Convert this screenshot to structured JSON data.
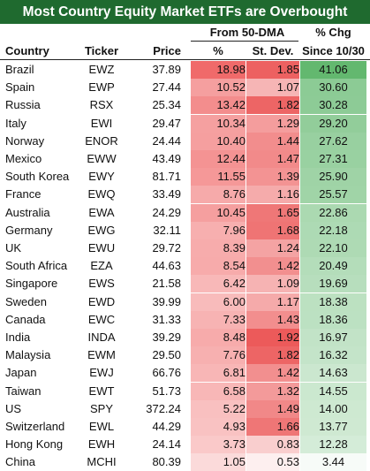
{
  "chart_data": {
    "type": "table",
    "title": "Most Country Equity Market ETFs are Overbought",
    "group_headers": {
      "from_dma": "From 50-DMA",
      "pct_chg": "% Chg"
    },
    "columns": [
      "Country",
      "Ticker",
      "Price",
      "%",
      "St. Dev.",
      "Since 10/30"
    ],
    "rows": [
      {
        "country": "Brazil",
        "ticker": "EWZ",
        "price": "37.89",
        "pct": "18.98",
        "std": "1.85",
        "chg": "41.06"
      },
      {
        "country": "Spain",
        "ticker": "EWP",
        "price": "27.44",
        "pct": "10.52",
        "std": "1.07",
        "chg": "30.60"
      },
      {
        "country": "Russia",
        "ticker": "RSX",
        "price": "25.34",
        "pct": "13.42",
        "std": "1.82",
        "chg": "30.28"
      },
      {
        "country": "Italy",
        "ticker": "EWI",
        "price": "29.47",
        "pct": "10.34",
        "std": "1.29",
        "chg": "29.20"
      },
      {
        "country": "Norway",
        "ticker": "ENOR",
        "price": "24.44",
        "pct": "10.40",
        "std": "1.44",
        "chg": "27.62"
      },
      {
        "country": "Mexico",
        "ticker": "EWW",
        "price": "43.49",
        "pct": "12.44",
        "std": "1.47",
        "chg": "27.31"
      },
      {
        "country": "South Korea",
        "ticker": "EWY",
        "price": "81.71",
        "pct": "11.55",
        "std": "1.39",
        "chg": "25.90"
      },
      {
        "country": "France",
        "ticker": "EWQ",
        "price": "33.49",
        "pct": "8.76",
        "std": "1.16",
        "chg": "25.57"
      },
      {
        "country": "Australia",
        "ticker": "EWA",
        "price": "24.29",
        "pct": "10.45",
        "std": "1.65",
        "chg": "22.86"
      },
      {
        "country": "Germany",
        "ticker": "EWG",
        "price": "32.11",
        "pct": "7.96",
        "std": "1.68",
        "chg": "22.18"
      },
      {
        "country": "UK",
        "ticker": "EWU",
        "price": "29.72",
        "pct": "8.39",
        "std": "1.24",
        "chg": "22.10"
      },
      {
        "country": "South Africa",
        "ticker": "EZA",
        "price": "44.63",
        "pct": "8.54",
        "std": "1.42",
        "chg": "20.49"
      },
      {
        "country": "Singapore",
        "ticker": "EWS",
        "price": "21.58",
        "pct": "6.42",
        "std": "1.09",
        "chg": "19.69"
      },
      {
        "country": "Sweden",
        "ticker": "EWD",
        "price": "39.99",
        "pct": "6.00",
        "std": "1.17",
        "chg": "18.38"
      },
      {
        "country": "Canada",
        "ticker": "EWC",
        "price": "31.33",
        "pct": "7.33",
        "std": "1.43",
        "chg": "18.36"
      },
      {
        "country": "India",
        "ticker": "INDA",
        "price": "39.29",
        "pct": "8.48",
        "std": "1.92",
        "chg": "16.97"
      },
      {
        "country": "Malaysia",
        "ticker": "EWM",
        "price": "29.50",
        "pct": "7.76",
        "std": "1.82",
        "chg": "16.32"
      },
      {
        "country": "Japan",
        "ticker": "EWJ",
        "price": "66.76",
        "pct": "6.81",
        "std": "1.42",
        "chg": "14.63"
      },
      {
        "country": "Taiwan",
        "ticker": "EWT",
        "price": "51.73",
        "pct": "6.58",
        "std": "1.32",
        "chg": "14.55"
      },
      {
        "country": "US",
        "ticker": "SPY",
        "price": "372.24",
        "pct": "5.22",
        "std": "1.49",
        "chg": "14.00"
      },
      {
        "country": "Switzerland",
        "ticker": "EWL",
        "price": "44.29",
        "pct": "4.93",
        "std": "1.66",
        "chg": "13.77"
      },
      {
        "country": "Hong Kong",
        "ticker": "EWH",
        "price": "24.14",
        "pct": "3.73",
        "std": "0.83",
        "chg": "12.28"
      },
      {
        "country": "China",
        "ticker": "MCHI",
        "price": "80.39",
        "pct": "1.05",
        "std": "0.53",
        "chg": "3.44"
      }
    ],
    "colors": {
      "title_bg": "#1f6a2f",
      "title_text": "#ffffff",
      "pct_scale": [
        "#ffffff",
        "#f06a6a"
      ],
      "std_scale": [
        "#ffffff",
        "#ec5a5a"
      ],
      "chg_scale": [
        "#ffffff",
        "#63b86f"
      ]
    }
  }
}
